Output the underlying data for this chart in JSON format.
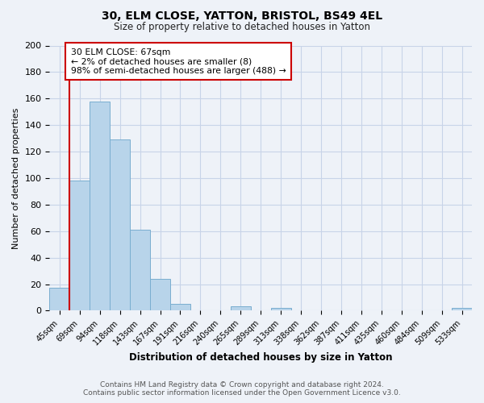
{
  "title": "30, ELM CLOSE, YATTON, BRISTOL, BS49 4EL",
  "subtitle": "Size of property relative to detached houses in Yatton",
  "xlabel": "Distribution of detached houses by size in Yatton",
  "ylabel": "Number of detached properties",
  "footer_line1": "Contains HM Land Registry data © Crown copyright and database right 2024.",
  "footer_line2": "Contains public sector information licensed under the Open Government Licence v3.0.",
  "bar_labels": [
    "45sqm",
    "69sqm",
    "94sqm",
    "118sqm",
    "143sqm",
    "167sqm",
    "191sqm",
    "216sqm",
    "240sqm",
    "265sqm",
    "289sqm",
    "313sqm",
    "338sqm",
    "362sqm",
    "387sqm",
    "411sqm",
    "435sqm",
    "460sqm",
    "484sqm",
    "509sqm",
    "533sqm"
  ],
  "bar_values": [
    17,
    98,
    158,
    129,
    61,
    24,
    5,
    0,
    0,
    3,
    0,
    2,
    0,
    0,
    0,
    0,
    0,
    0,
    0,
    0,
    2
  ],
  "bar_color": "#b8d4ea",
  "bar_edge_color": "#7aaed0",
  "grid_color": "#c8d4e8",
  "property_line_x": 0.5,
  "property_line_color": "#cc0000",
  "annotation_line1": "30 ELM CLOSE: 67sqm",
  "annotation_line2": "← 2% of detached houses are smaller (8)",
  "annotation_line3": "98% of semi-detached houses are larger (488) →",
  "annotation_box_color": "#ffffff",
  "annotation_box_edge_color": "#cc0000",
  "ylim": [
    0,
    200
  ],
  "yticks": [
    0,
    20,
    40,
    60,
    80,
    100,
    120,
    140,
    160,
    180,
    200
  ],
  "background_color": "#eef2f8",
  "plot_bg_color": "#eef2f8",
  "title_fontsize": 10,
  "subtitle_fontsize": 8.5
}
